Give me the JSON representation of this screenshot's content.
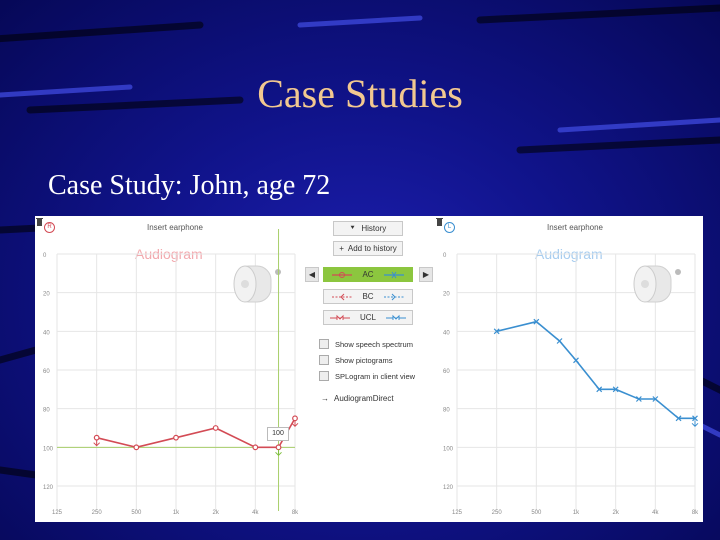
{
  "slide": {
    "title": "Case Studies",
    "subtitle": "Case Study:  John, age 72"
  },
  "left_panel": {
    "ear_badge": "R",
    "header": "Insert earphone",
    "watermark": "Audiogram",
    "y_ticks": [
      "0",
      "20",
      "40",
      "60",
      "80",
      "100",
      "120"
    ],
    "x_ticks": [
      "125",
      "250",
      "500",
      "1k",
      "2k",
      "4k",
      "8k"
    ],
    "tooltip": "100",
    "color": "#d34b55",
    "series": [
      {
        "freq_label": "250",
        "db": 95
      },
      {
        "freq_label": "500",
        "db": 100
      },
      {
        "freq_label": "1k",
        "db": 95
      },
      {
        "freq_label": "2k",
        "db": 90
      },
      {
        "freq_label": "4k",
        "db": 100
      },
      {
        "freq_label": "6k",
        "db": 100
      },
      {
        "freq_label": "8k",
        "db": 85
      }
    ]
  },
  "right_panel": {
    "ear_badge": "L",
    "header": "Insert earphone",
    "watermark": "Audiogram",
    "y_ticks": [
      "0",
      "20",
      "40",
      "60",
      "80",
      "100",
      "120"
    ],
    "x_ticks": [
      "125",
      "250",
      "500",
      "1k",
      "2k",
      "4k",
      "8k"
    ],
    "color": "#3a8fd0",
    "series": [
      {
        "freq_label": "250",
        "db": 40
      },
      {
        "freq_label": "500",
        "db": 35
      },
      {
        "freq_label": "750",
        "db": 45
      },
      {
        "freq_label": "1k",
        "db": 55
      },
      {
        "freq_label": "1.5k",
        "db": 70
      },
      {
        "freq_label": "2k",
        "db": 70
      },
      {
        "freq_label": "3k",
        "db": 75
      },
      {
        "freq_label": "4k",
        "db": 75
      },
      {
        "freq_label": "6k",
        "db": 85
      },
      {
        "freq_label": "8k",
        "db": 85
      }
    ]
  },
  "center": {
    "history_label": "History",
    "add_history_label": "Add to history",
    "ac_label": "AC",
    "bc_label": "BC",
    "ucl_label": "UCL",
    "show_speech_spectrum": "Show speech spectrum",
    "show_pictograms": "Show pictograms",
    "splogram": "SPLogram in client view",
    "audiogram_direct": "AudiogramDirect",
    "ac_active_color": "#8cc63f"
  }
}
